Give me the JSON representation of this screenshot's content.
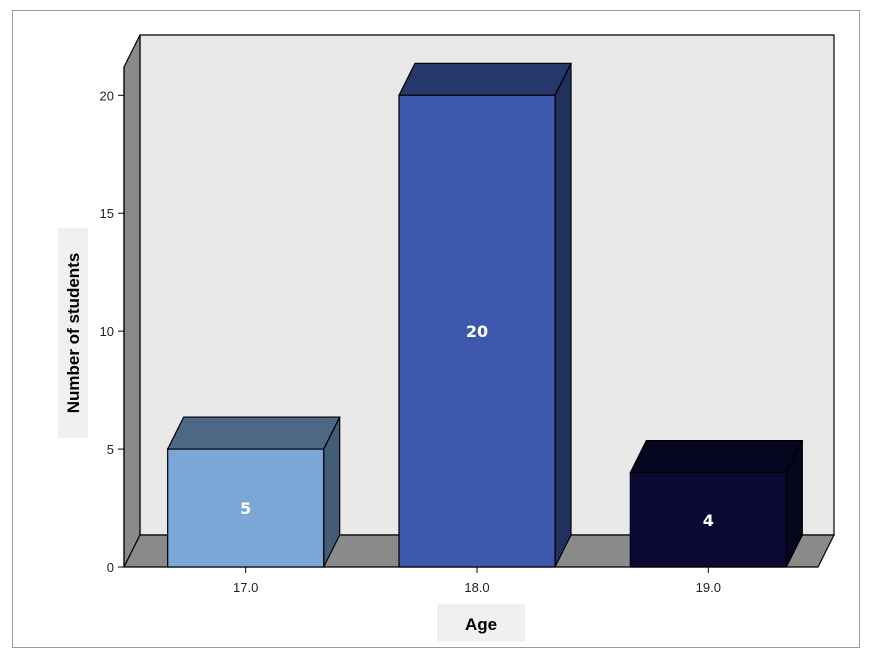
{
  "chart_data": {
    "type": "bar",
    "categories": [
      "17.0",
      "18.0",
      "19.0"
    ],
    "values": [
      5,
      20,
      4
    ],
    "data_labels": [
      "5",
      "20",
      "4"
    ],
    "colors": [
      "#7ba7d6",
      "#3d58ad",
      "#0a0a35"
    ],
    "title": "",
    "xlabel": "Age",
    "ylabel": "Number of students",
    "ylim": [
      0,
      21.2
    ],
    "yticks": [
      0,
      5,
      10,
      15,
      20
    ],
    "grid": false,
    "style": "3d"
  }
}
